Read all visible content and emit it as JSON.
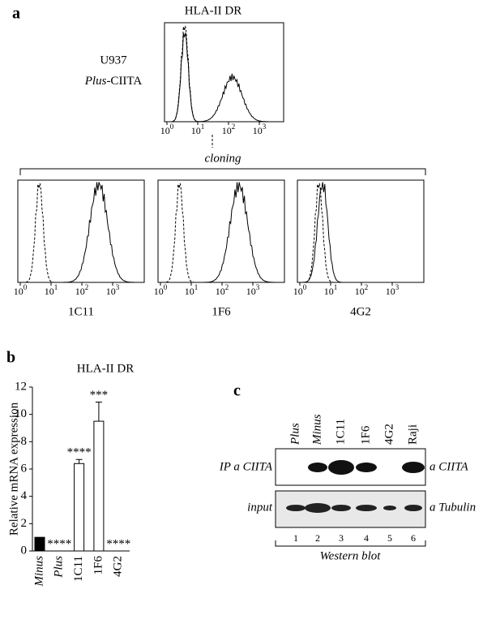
{
  "panel_a": {
    "label": "a",
    "title": "HLA-II DR",
    "cell_line": "U937",
    "construct_prefix": "Plus",
    "construct_suffix": "-CIITA",
    "log_base": "10",
    "log_exponents": [
      "0",
      "1",
      "2",
      "3"
    ],
    "cloning": "cloning",
    "clones": [
      "1C11",
      "1F6",
      "4G2"
    ]
  },
  "chart_data": {
    "type": "bar",
    "panel_label": "b",
    "title": "HLA-II DR",
    "ylabel": "Relative mRNA expression",
    "categories": [
      "Minus",
      "Plus",
      "1C11",
      "1F6",
      "4G2"
    ],
    "values": [
      1,
      0,
      6.4,
      9.5,
      0
    ],
    "errors": [
      0,
      0,
      0.3,
      1.4,
      0
    ],
    "colors": [
      "#000000",
      "#ffffff",
      "#ffffff",
      "#ffffff",
      "#ffffff"
    ],
    "value_labels": [
      null,
      "****",
      "****",
      "***",
      "****"
    ],
    "ylim": [
      0,
      12
    ],
    "yticks": [
      0,
      2,
      4,
      6,
      8,
      10,
      12
    ]
  },
  "panel_c": {
    "label": "c",
    "lanes": [
      "Plus",
      "Minus",
      "1C11",
      "1F6",
      "4G2",
      "Raji"
    ],
    "lane_numbers": [
      "1",
      "2",
      "3",
      "4",
      "5",
      "6"
    ],
    "rows": [
      {
        "left": "IP a CIITA",
        "right": "a CIITA"
      },
      {
        "left": "input",
        "right": "a Tubulin"
      }
    ],
    "footer": "Western blot"
  }
}
